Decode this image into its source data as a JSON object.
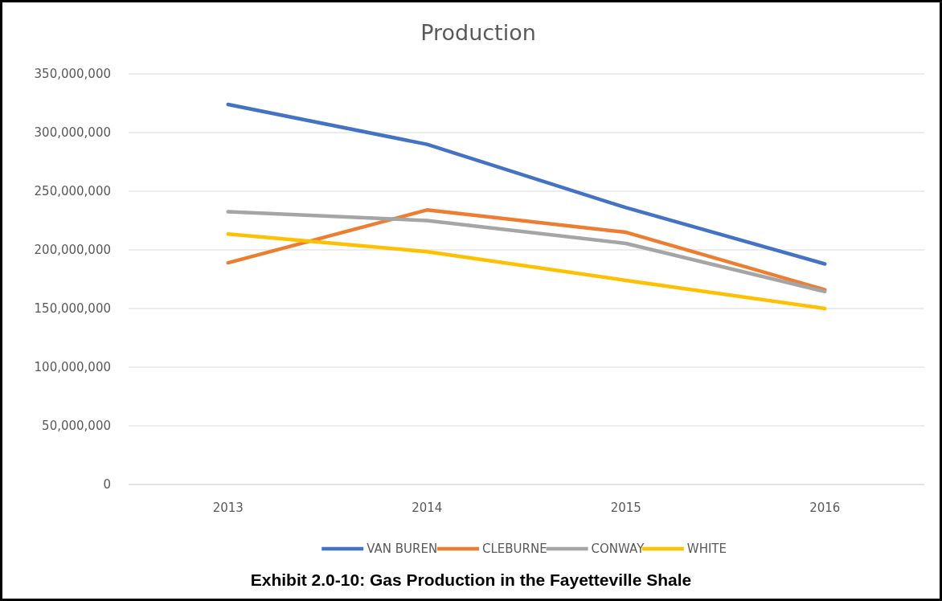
{
  "chart_data": {
    "type": "line",
    "title": "Production",
    "categories": [
      "2013",
      "2014",
      "2015",
      "2016"
    ],
    "series": [
      {
        "name": "VAN BUREN",
        "color": "#4472c4",
        "values": [
          324000000,
          290000000,
          236000000,
          188000000
        ]
      },
      {
        "name": "CLEBURNE",
        "color": "#ed7d31",
        "values": [
          189000000,
          234000000,
          215000000,
          166000000
        ]
      },
      {
        "name": "CONWAY",
        "color": "#a5a5a5",
        "values": [
          232500000,
          225000000,
          205500000,
          164500000
        ]
      },
      {
        "name": "WHITE",
        "color": "#ffc000",
        "values": [
          213500000,
          198500000,
          174000000,
          150000000
        ]
      }
    ],
    "ylim": [
      0,
      350000000
    ],
    "yticks": [
      {
        "value": 0,
        "label": "0"
      },
      {
        "value": 50000000,
        "label": "50,000,000"
      },
      {
        "value": 100000000,
        "label": "100,000,000"
      },
      {
        "value": 150000000,
        "label": "150,000,000"
      },
      {
        "value": 200000000,
        "label": "200,000,000"
      },
      {
        "value": 250000000,
        "label": "250,000,000"
      },
      {
        "value": 300000000,
        "label": "300,000,000"
      },
      {
        "value": 350000000,
        "label": "350,000,000"
      }
    ],
    "grid": "y",
    "legend": "bottom",
    "marker": "none",
    "line_style": "solid",
    "annotations": [
      "Exhibit 2.0-10: Gas Production in the Fayetteville Shale"
    ]
  }
}
